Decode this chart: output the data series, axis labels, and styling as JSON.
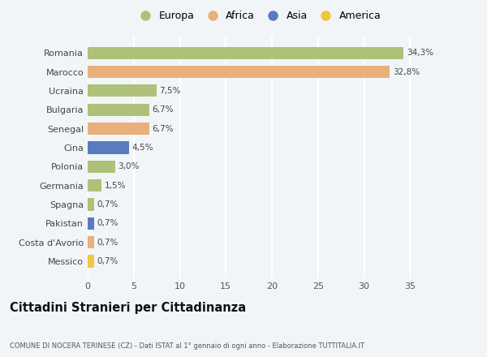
{
  "categories": [
    "Romania",
    "Marocco",
    "Ucraina",
    "Bulgaria",
    "Senegal",
    "Cina",
    "Polonia",
    "Germania",
    "Spagna",
    "Pakistan",
    "Costa d'Avorio",
    "Messico"
  ],
  "values": [
    34.3,
    32.8,
    7.5,
    6.7,
    6.7,
    4.5,
    3.0,
    1.5,
    0.7,
    0.7,
    0.7,
    0.7
  ],
  "labels": [
    "34,3%",
    "32,8%",
    "7,5%",
    "6,7%",
    "6,7%",
    "4,5%",
    "3,0%",
    "1,5%",
    "0,7%",
    "0,7%",
    "0,7%",
    "0,7%"
  ],
  "bar_colors": [
    "#adc178",
    "#e8b07a",
    "#adc178",
    "#adc178",
    "#e8b07a",
    "#5b7bbf",
    "#adc178",
    "#adc178",
    "#adc178",
    "#5b7bbf",
    "#e8b07a",
    "#f0c840"
  ],
  "legend_labels": [
    "Europa",
    "Africa",
    "Asia",
    "America"
  ],
  "legend_colors": [
    "#adc178",
    "#e8b07a",
    "#5b7bbf",
    "#f0c840"
  ],
  "title": "Cittadini Stranieri per Cittadinanza",
  "subtitle": "COMUNE DI NOCERA TERINESE (CZ) - Dati ISTAT al 1° gennaio di ogni anno - Elaborazione TUTTITALIA.IT",
  "xlim": [
    0,
    37
  ],
  "xticks": [
    0,
    5,
    10,
    15,
    20,
    25,
    30,
    35
  ],
  "background_color": "#f2f5f8",
  "grid_color": "#ffffff",
  "bar_height": 0.65
}
